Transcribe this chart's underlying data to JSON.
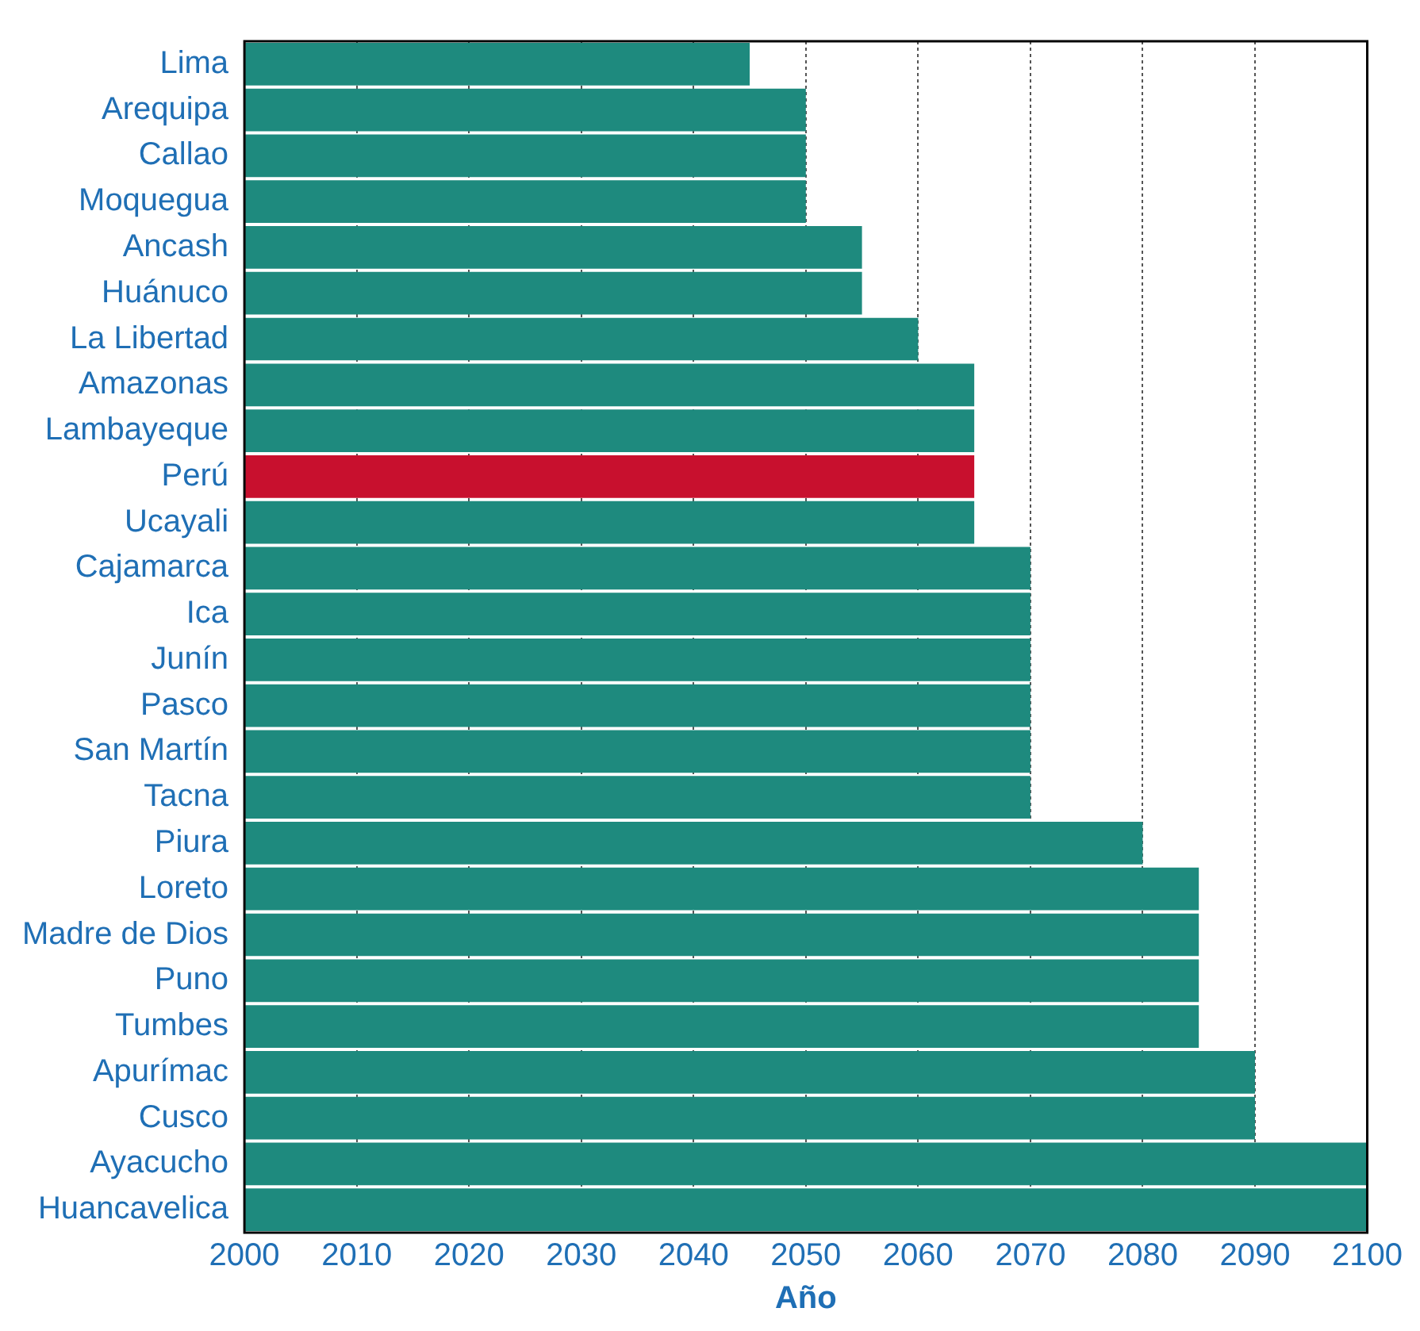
{
  "chart_data": {
    "type": "bar",
    "orientation": "horizontal",
    "xlabel": "Año",
    "categories": [
      "Lima",
      "Arequipa",
      "Callao",
      "Moquegua",
      "Ancash",
      "Huánuco",
      "La Libertad",
      "Amazonas",
      "Lambayeque",
      "Perú",
      "Ucayali",
      "Cajamarca",
      "Ica",
      "Junín",
      "Pasco",
      "San Martín",
      "Tacna",
      "Piura",
      "Loreto",
      "Madre de Dios",
      "Puno",
      "Tumbes",
      "Apurímac",
      "Cusco",
      "Ayacucho",
      "Huancavelica"
    ],
    "values": [
      2045,
      2050,
      2050,
      2050,
      2055,
      2055,
      2060,
      2065,
      2065,
      2065,
      2065,
      2070,
      2070,
      2070,
      2070,
      2070,
      2070,
      2080,
      2085,
      2085,
      2085,
      2085,
      2090,
      2090,
      2100,
      2100
    ],
    "colors": [
      "#1e8a7e",
      "#1e8a7e",
      "#1e8a7e",
      "#1e8a7e",
      "#1e8a7e",
      "#1e8a7e",
      "#1e8a7e",
      "#1e8a7e",
      "#1e8a7e",
      "#c8102e",
      "#1e8a7e",
      "#1e8a7e",
      "#1e8a7e",
      "#1e8a7e",
      "#1e8a7e",
      "#1e8a7e",
      "#1e8a7e",
      "#1e8a7e",
      "#1e8a7e",
      "#1e8a7e",
      "#1e8a7e",
      "#1e8a7e",
      "#1e8a7e",
      "#1e8a7e",
      "#1e8a7e",
      "#1e8a7e"
    ],
    "xlim": [
      2000,
      2100
    ],
    "xticks": [
      2000,
      2010,
      2020,
      2030,
      2040,
      2050,
      2060,
      2070,
      2080,
      2090,
      2100
    ],
    "grid": "x",
    "legend": false
  }
}
